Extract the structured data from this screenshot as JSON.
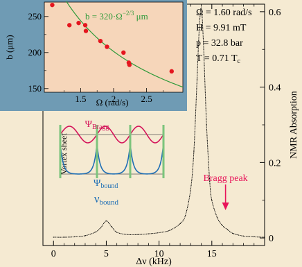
{
  "chart_data": [
    {
      "type": "line",
      "x": [
        0,
        1,
        2,
        3,
        4,
        4.5,
        5,
        5.5,
        6,
        7,
        8,
        9,
        10,
        11,
        12,
        12.5,
        13,
        13.3,
        13.6,
        13.8,
        14,
        14.2,
        14.5,
        14.8,
        15,
        15.5,
        16,
        16.5,
        17,
        18,
        19,
        20
      ],
      "y": [
        0.002,
        0.002,
        0.003,
        0.006,
        0.016,
        0.028,
        0.045,
        0.03,
        0.015,
        0.009,
        0.009,
        0.011,
        0.014,
        0.02,
        0.038,
        0.06,
        0.13,
        0.23,
        0.42,
        0.55,
        0.61,
        0.52,
        0.3,
        0.15,
        0.1,
        0.055,
        0.033,
        0.022,
        0.012,
        0.005,
        0.003,
        0.002
      ],
      "xlabel": "Δν (kHz)",
      "ylabel": "NMR Absorption",
      "xticks": [
        "0",
        "5",
        "10",
        "15"
      ],
      "yticks": [
        "0",
        "0.2",
        "0.4",
        "0.6"
      ],
      "xlim": [
        -1,
        20
      ],
      "ylim": [
        -0.02,
        0.62
      ],
      "params": [
        "Ω = 1.60 rad/s",
        "H = 9.91 mT",
        "p = 32.8 bar",
        "T = 0.71 T"
      ],
      "param_subscript": "c",
      "annotations": {
        "bragg_peak": "Bragg peak",
        "bragg_peak_x": 16.3,
        "nu_bound": "ν",
        "nu_bound_sub": "bound",
        "nu_bound_x": 5,
        "inset_psi_bragg": "Ψ",
        "inset_psi_bragg_sub": "Bragg",
        "inset_psi_bound": "Ψ",
        "inset_psi_bound_sub": "bound",
        "inset_vortex_sheet": "Vortex sheet"
      }
    },
    {
      "type": "scatter",
      "x": [
        1.07,
        1.33,
        1.47,
        1.57,
        1.58,
        1.8,
        1.9,
        2.15,
        2.23,
        2.24,
        2.88
      ],
      "y": [
        266,
        238,
        241,
        238,
        230,
        216,
        208,
        200,
        186,
        183,
        174
      ],
      "fit_label": "b = 320·Ω",
      "fit_exponent": "−2/3",
      "fit_unit": " μm",
      "xlabel": "Ω (rad/s)",
      "ylabel": "b (μm)",
      "xticks": [
        "1.5",
        "2",
        "2.5"
      ],
      "yticks": [
        "150",
        "200",
        "250"
      ],
      "xlim": [
        0.95,
        3.05
      ],
      "ylim": [
        145,
        270
      ]
    }
  ],
  "colors": {
    "background": "#f5ead2",
    "inset_panel": "#f6d6ba",
    "inset_frame": "#6f9bb4",
    "data": "#000000",
    "bragg_wave": "#d4145a",
    "bound_wave": "#1f6fb5",
    "vortex_sheet": "#7cc47c",
    "fit_curve": "#2f9a3a",
    "scatter_points": "#e4161f",
    "bragg_arrow": "#e8145a"
  }
}
